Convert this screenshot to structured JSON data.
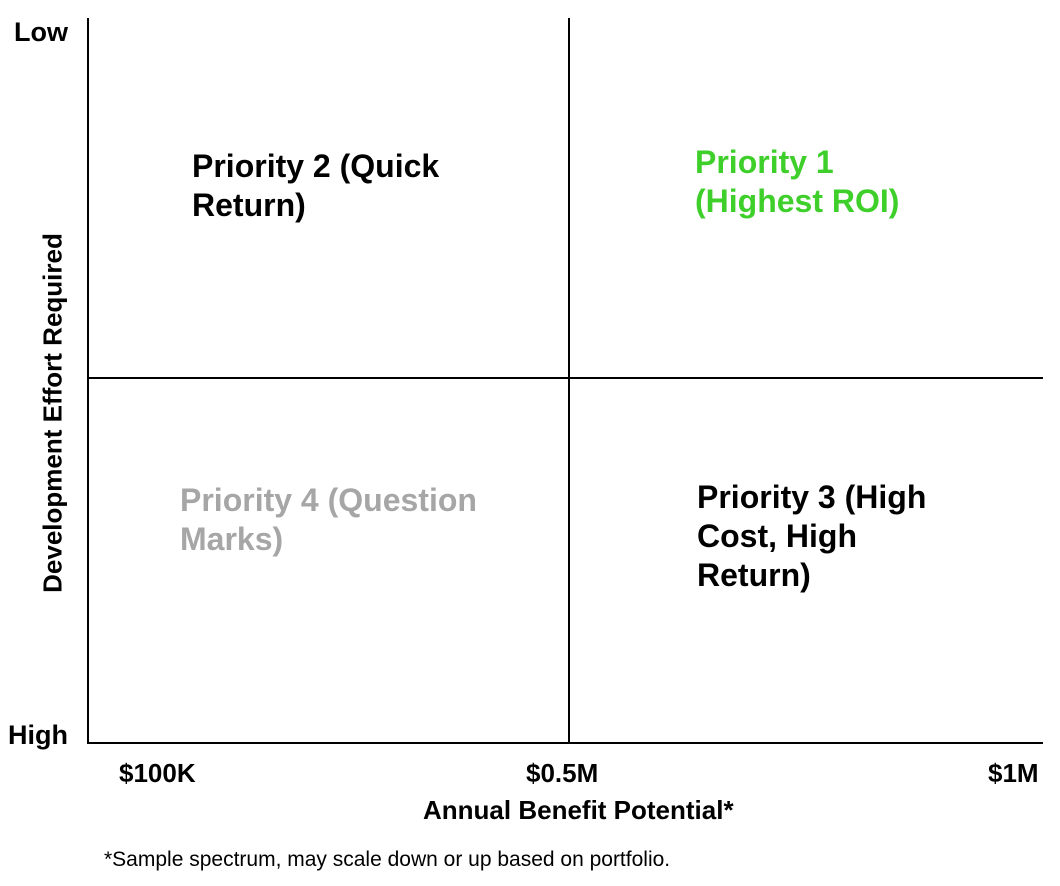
{
  "axes": {
    "y_top_label": "Low",
    "y_bottom_label": "High",
    "y_title": "Development Effort Required",
    "x_ticks": [
      "$100K",
      "$0.5M",
      "$1M"
    ],
    "x_title": "Annual Benefit Potential*"
  },
  "quadrants": {
    "top_left": {
      "text": "Priority 2 (Quick\nReturn)",
      "color": "#000000"
    },
    "top_right": {
      "text": "Priority 1\n(Highest ROI)",
      "color": "#3ecf2a"
    },
    "bottom_left": {
      "text": "Priority 4 (Question\nMarks)",
      "color": "#a6a6a6"
    },
    "bottom_right": {
      "text": "Priority 3 (High\nCost, High\nReturn)",
      "color": "#000000"
    }
  },
  "footnote": "*Sample spectrum, may scale down or up based on portfolio."
}
